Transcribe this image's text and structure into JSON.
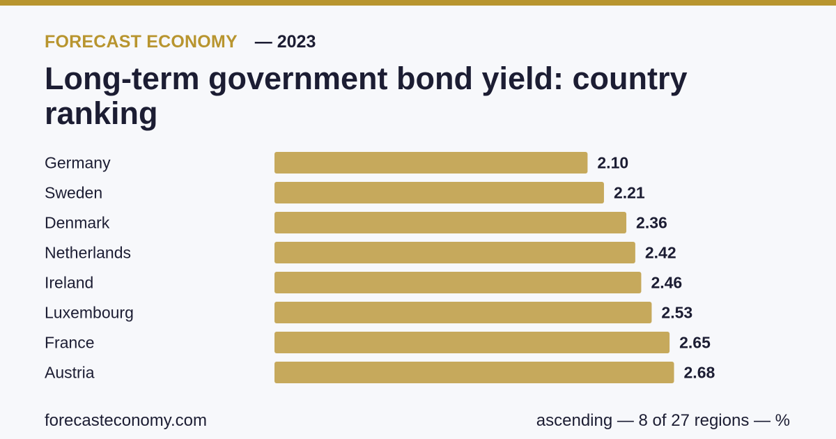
{
  "header": {
    "brand": "FORECAST ECONOMY",
    "year_label": "— 2023",
    "title": "Long-term government bond yield: country ranking"
  },
  "footer": {
    "site": "forecasteconomy.com",
    "note": "ascending — 8 of 27 regions — %"
  },
  "colors": {
    "accent": "#b8952f",
    "bar": "#c6a95c",
    "text": "#1c1d33",
    "background": "#f7f8fb"
  },
  "chart_data": {
    "type": "bar",
    "orientation": "horizontal",
    "categories": [
      "Germany",
      "Sweden",
      "Denmark",
      "Netherlands",
      "Ireland",
      "Luxembourg",
      "France",
      "Austria"
    ],
    "values": [
      2.1,
      2.21,
      2.36,
      2.42,
      2.46,
      2.53,
      2.65,
      2.68
    ],
    "value_labels": [
      "2.10",
      "2.21",
      "2.36",
      "2.42",
      "2.46",
      "2.53",
      "2.65",
      "2.68"
    ],
    "sort": "ascending",
    "grid": false,
    "legend": "none"
  }
}
